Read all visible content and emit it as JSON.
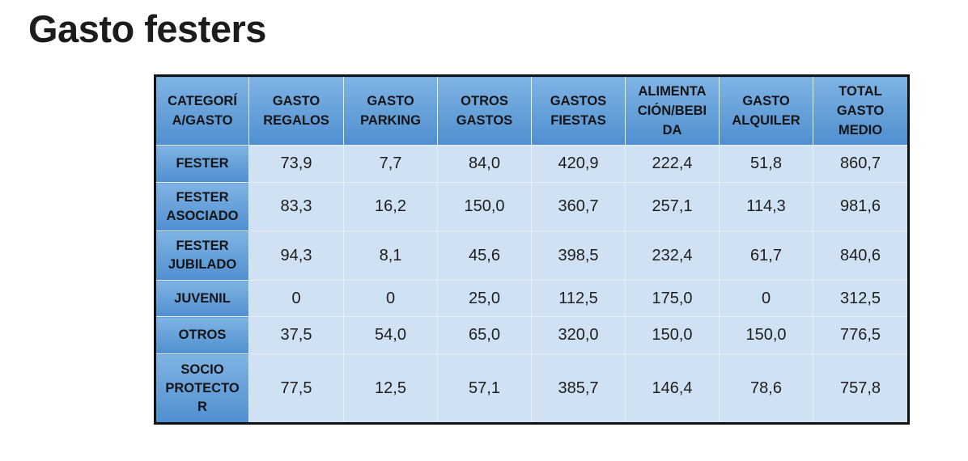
{
  "title": "Gasto festers",
  "table": {
    "header": [
      "CATEGORÍ\nA/GASTO",
      "GASTO\nREGALOS",
      "GASTO\nPARKING",
      "OTROS\nGASTOS",
      "GASTOS\nFIESTAS",
      "ALIMENTA\nCIÓN/BEBI\nDA",
      "GASTO\nALQUILER",
      "TOTAL\nGASTO\nMEDIO"
    ],
    "rows": [
      [
        "FESTER",
        "73,9",
        "7,7",
        "84,0",
        "420,9",
        "222,4",
        "51,8",
        "860,7"
      ],
      [
        "FESTER\nASOCIADO",
        "83,3",
        "16,2",
        "150,0",
        "360,7",
        "257,1",
        "114,3",
        "981,6"
      ],
      [
        "FESTER\nJUBILADO",
        "94,3",
        "8,1",
        "45,6",
        "398,5",
        "232,4",
        "61,7",
        "840,6"
      ],
      [
        "JUVENIL",
        "0",
        "0",
        "25,0",
        "112,5",
        "175,0",
        "0",
        "312,5"
      ],
      [
        "OTROS",
        "37,5",
        "54,0",
        "65,0",
        "320,0",
        "150,0",
        "150,0",
        "776,5"
      ],
      [
        "SOCIO\nPROTECTO\nR",
        "77,5",
        "12,5",
        "57,1",
        "385,7",
        "146,4",
        "78,6",
        "757,8"
      ]
    ]
  }
}
